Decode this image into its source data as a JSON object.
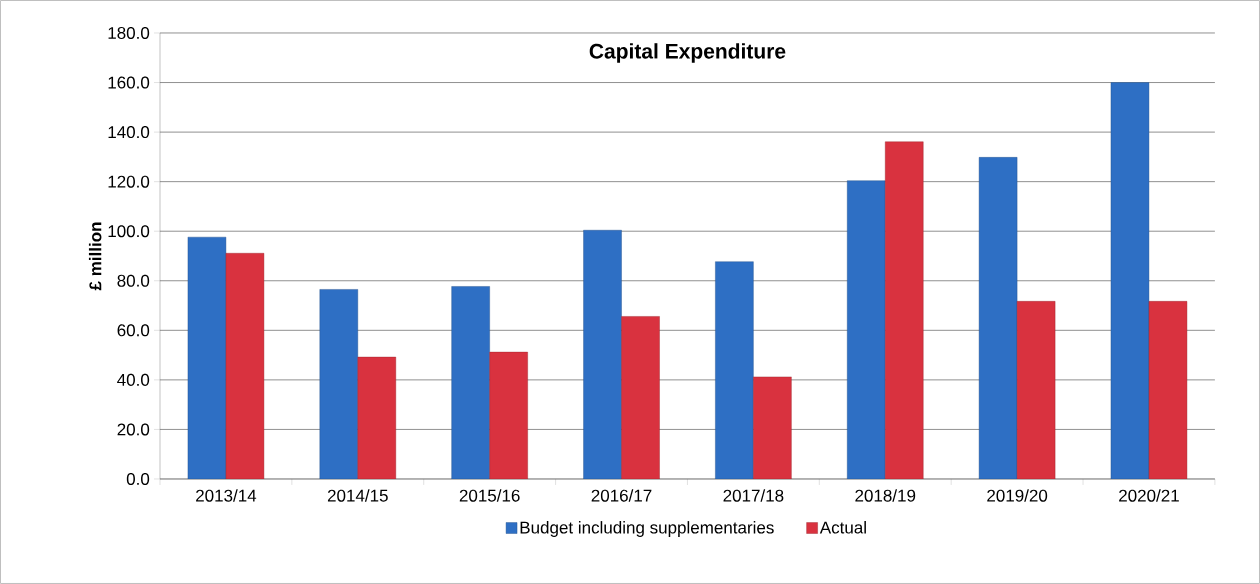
{
  "chart_data": {
    "type": "bar",
    "title": "Capital Expenditure",
    "ylabel": "£ million",
    "categories": [
      "2013/14",
      "2014/15",
      "2015/16",
      "2016/17",
      "2017/18",
      "2018/19",
      "2019/20",
      "2020/21"
    ],
    "series": [
      {
        "name": "Budget including supplementaries",
        "color": "#2e6fc4",
        "values": [
          97.6,
          76.5,
          77.7,
          100.4,
          87.7,
          120.4,
          129.8,
          160.0
        ]
      },
      {
        "name": "Actual",
        "color": "#d9323f",
        "values": [
          91.1,
          49.2,
          51.2,
          65.6,
          41.2,
          136.1,
          71.7,
          71.7
        ]
      }
    ],
    "ylim": [
      0,
      180
    ],
    "yticks": [
      {
        "value": 0,
        "label": "0.0"
      },
      {
        "value": 20,
        "label": "20.0"
      },
      {
        "value": 40,
        "label": "40.0"
      },
      {
        "value": 60,
        "label": "60.0"
      },
      {
        "value": 80,
        "label": "80.0"
      },
      {
        "value": 100,
        "label": "100.0"
      },
      {
        "value": 120,
        "label": "120.0"
      },
      {
        "value": 140,
        "label": "140.0"
      },
      {
        "value": 160,
        "label": "160.0"
      },
      {
        "value": 180,
        "label": "180.0"
      }
    ],
    "grid": "y",
    "legend": "bottom"
  }
}
